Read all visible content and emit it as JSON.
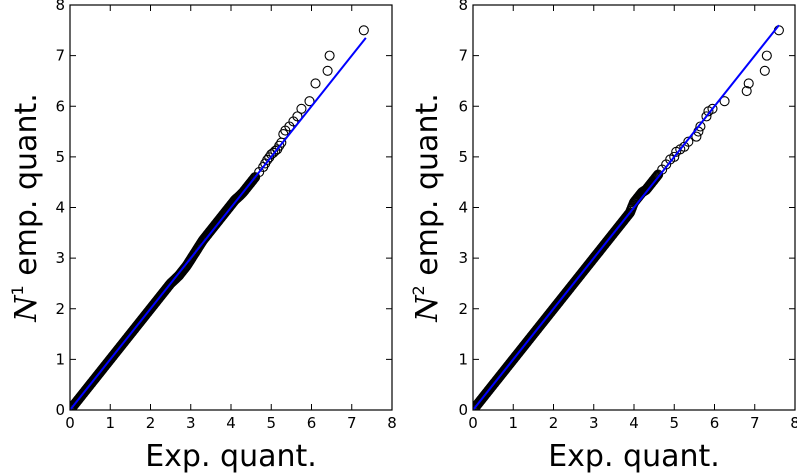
{
  "chart_data": [
    {
      "type": "scatter",
      "xlabel": "Exp. quant.",
      "ylabel_symbol": "N",
      "ylabel_superscript": "1",
      "ylabel_text": " emp. quant.",
      "xlim": [
        0,
        8
      ],
      "ylim": [
        0,
        8
      ],
      "xticks": [
        "0",
        "1",
        "2",
        "3",
        "4",
        "5",
        "6",
        "7",
        "8"
      ],
      "yticks": [
        "0",
        "1",
        "2",
        "3",
        "4",
        "5",
        "6",
        "7",
        "8"
      ],
      "grid": false,
      "marker_color": "#000000",
      "line_color": "#0000ff",
      "series": [
        {
          "kind": "points",
          "x": [
            0.02,
            0.1,
            0.2,
            0.35,
            0.5,
            0.7,
            0.9,
            1.1,
            1.3,
            1.5,
            1.7,
            1.9,
            2.1,
            2.3,
            2.5,
            2.7,
            2.9,
            3.1,
            3.3,
            3.5,
            3.7,
            3.9,
            4.0,
            4.1,
            4.2,
            4.3,
            4.4,
            4.5,
            4.6,
            4.7,
            4.8,
            4.85,
            4.9,
            4.95,
            5.0,
            5.05,
            5.1,
            5.15,
            5.2,
            5.25,
            5.3,
            5.35,
            5.45,
            5.55,
            5.65,
            5.75,
            5.95,
            6.1,
            6.4,
            6.45,
            7.3
          ],
          "y": [
            0.02,
            0.1,
            0.2,
            0.35,
            0.5,
            0.7,
            0.9,
            1.1,
            1.3,
            1.5,
            1.7,
            1.9,
            2.1,
            2.3,
            2.5,
            2.65,
            2.85,
            3.1,
            3.35,
            3.55,
            3.75,
            3.95,
            4.05,
            4.15,
            4.22,
            4.3,
            4.4,
            4.5,
            4.6,
            4.7,
            4.8,
            4.87,
            4.94,
            4.99,
            5.05,
            5.08,
            5.12,
            5.15,
            5.22,
            5.28,
            5.45,
            5.52,
            5.6,
            5.7,
            5.8,
            5.95,
            6.1,
            6.45,
            6.7,
            7.0,
            7.5
          ]
        },
        {
          "kind": "line",
          "x": [
            0,
            7.35
          ],
          "y": [
            0,
            7.35
          ]
        }
      ]
    },
    {
      "type": "scatter",
      "xlabel": "Exp. quant.",
      "ylabel_symbol": "N",
      "ylabel_superscript": "2",
      "ylabel_text": " emp. quant.",
      "xlim": [
        0,
        8
      ],
      "ylim": [
        0,
        8
      ],
      "xticks": [
        "0",
        "1",
        "2",
        "3",
        "4",
        "5",
        "6",
        "7",
        "8"
      ],
      "yticks": [
        "0",
        "1",
        "2",
        "3",
        "4",
        "5",
        "6",
        "7",
        "8"
      ],
      "grid": false,
      "marker_color": "#000000",
      "line_color": "#0000ff",
      "series": [
        {
          "kind": "points",
          "x": [
            0.02,
            0.1,
            0.2,
            0.35,
            0.5,
            0.7,
            0.9,
            1.1,
            1.3,
            1.5,
            1.7,
            1.9,
            2.1,
            2.3,
            2.5,
            2.7,
            2.9,
            3.1,
            3.3,
            3.5,
            3.7,
            3.9,
            4.0,
            4.1,
            4.2,
            4.3,
            4.4,
            4.5,
            4.6,
            4.7,
            4.8,
            4.9,
            5.0,
            5.05,
            5.15,
            5.25,
            5.35,
            5.55,
            5.6,
            5.65,
            5.8,
            5.85,
            5.95,
            6.25,
            6.8,
            6.85,
            7.25,
            7.3,
            7.6
          ],
          "y": [
            0.02,
            0.1,
            0.2,
            0.35,
            0.5,
            0.7,
            0.9,
            1.1,
            1.3,
            1.5,
            1.7,
            1.9,
            2.1,
            2.3,
            2.5,
            2.7,
            2.9,
            3.1,
            3.3,
            3.5,
            3.7,
            3.9,
            4.1,
            4.2,
            4.3,
            4.35,
            4.45,
            4.55,
            4.65,
            4.75,
            4.85,
            4.95,
            5.0,
            5.1,
            5.15,
            5.2,
            5.3,
            5.4,
            5.5,
            5.6,
            5.8,
            5.9,
            5.95,
            6.1,
            6.3,
            6.45,
            6.7,
            7.0,
            7.5
          ]
        },
        {
          "kind": "line",
          "x": [
            0,
            7.6
          ],
          "y": [
            0,
            7.6
          ]
        }
      ]
    }
  ]
}
